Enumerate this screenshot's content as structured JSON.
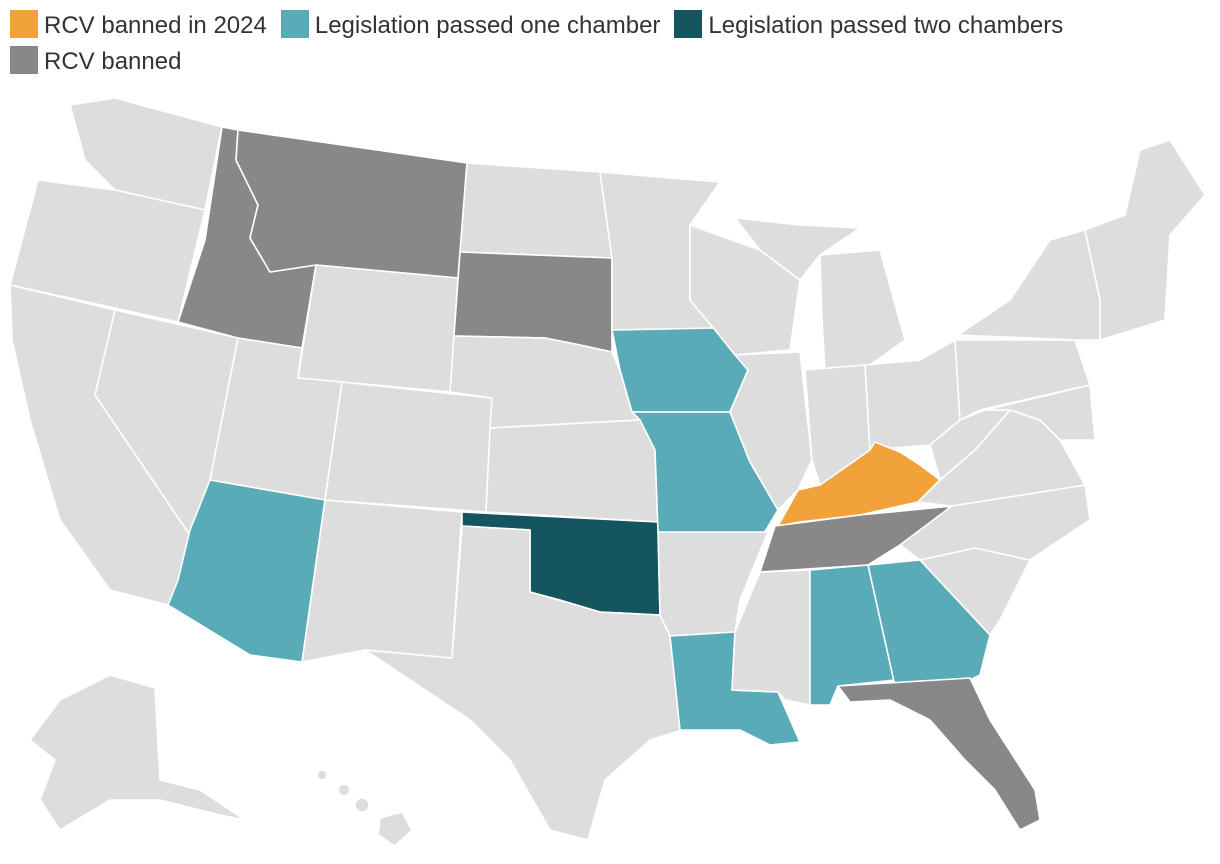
{
  "legend": [
    {
      "label": "RCV banned in 2024",
      "color": "#f2a23a"
    },
    {
      "label": "Legislation passed one chamber",
      "color": "#5aabb8"
    },
    {
      "label": "Legislation passed two chambers",
      "color": "#155560"
    },
    {
      "label": "RCV banned",
      "color": "#888888"
    }
  ],
  "default_color": "#dddddd",
  "states": {
    "banned_2024": [
      "Kentucky"
    ],
    "passed_one_chamber": [
      "Arizona",
      "Iowa",
      "Missouri",
      "Louisiana",
      "Alabama",
      "Georgia"
    ],
    "passed_two_chambers": [
      "Oklahoma"
    ],
    "banned": [
      "Idaho",
      "Montana",
      "South Dakota",
      "Tennessee",
      "Florida"
    ]
  }
}
